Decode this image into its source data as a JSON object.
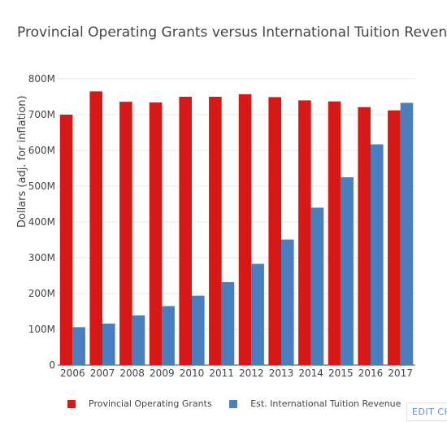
{
  "chart_data": {
    "type": "bar",
    "title": "Provincial Operating Grants versus International Tuition Revenue",
    "xlabel": "",
    "ylabel": "Dollars (adj. for inflation)",
    "ylim": [
      0,
      800000000
    ],
    "y_ticks": [
      0,
      100000000,
      200000000,
      300000000,
      400000000,
      500000000,
      600000000,
      700000000,
      800000000
    ],
    "y_tick_labels": [
      "0",
      "100M",
      "200M",
      "300M",
      "400M",
      "500M",
      "600M",
      "700M",
      "800M"
    ],
    "grid": true,
    "legend_position": "bottom",
    "categories": [
      "2006",
      "2007",
      "2008",
      "2009",
      "2010",
      "2011",
      "2012",
      "2013",
      "2014",
      "2015",
      "2016",
      "2017"
    ],
    "series": [
      {
        "name": "Provincial Operating Grants",
        "color": "#d81717",
        "values": [
          700000000,
          765000000,
          736000000,
          734000000,
          750000000,
          750000000,
          757000000,
          749000000,
          740000000,
          737000000,
          721000000,
          712000000
        ]
      },
      {
        "name": "Est. International Tuition Revenue",
        "color": "#4a7fbf",
        "values": [
          106000000,
          116000000,
          139000000,
          165000000,
          194000000,
          232000000,
          283000000,
          351000000,
          440000000,
          525000000,
          617000000,
          733000000
        ]
      }
    ]
  },
  "edit_link": "EDIT CH"
}
